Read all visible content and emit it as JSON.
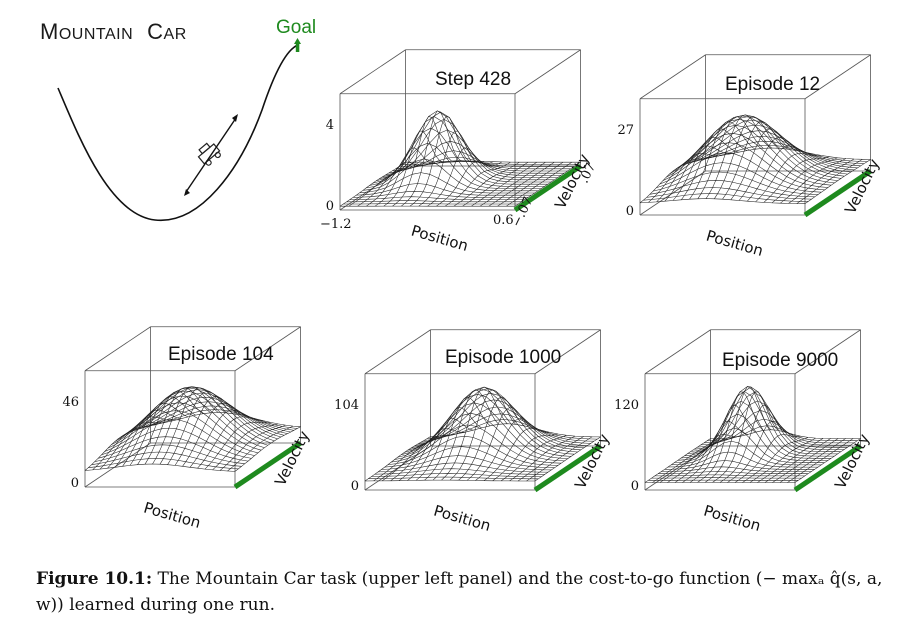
{
  "mountain_car": {
    "title_first": "M",
    "title_rest1": "OUNTAIN",
    "title_second": "C",
    "title_rest2": "AR",
    "goal": "Goal",
    "accent": "#1e8a1e"
  },
  "panels": [
    {
      "title": "Step 428",
      "zmax": "4",
      "zmin": "0",
      "xlabel": "Position",
      "ylabel": "Velocity",
      "x_min": "−1.2",
      "x_max": "0.6",
      "v_min": "−.07",
      "v_max": ".07"
    },
    {
      "title": "Episode 12",
      "zmax": "27",
      "zmin": "0",
      "xlabel": "Position",
      "ylabel": "Velocity"
    },
    {
      "title": "Episode 104",
      "zmax": "46",
      "zmin": "0",
      "xlabel": "Position",
      "ylabel": "Velocity"
    },
    {
      "title": "Episode 1000",
      "zmax": "104",
      "zmin": "0",
      "xlabel": "Position",
      "ylabel": "Velocity"
    },
    {
      "title": "Episode 9000",
      "zmax": "120",
      "zmin": "0",
      "xlabel": "Position",
      "ylabel": "Velocity"
    }
  ],
  "caption": {
    "label": "Figure 10.1:",
    "text": " The Mountain Car task (upper left panel) and the cost-to-go function (− maxₐ q̂(s, a, w)) learned during one run."
  },
  "colors": {
    "velocity_bar": "#1e8a1e",
    "mesh": "#222222"
  }
}
